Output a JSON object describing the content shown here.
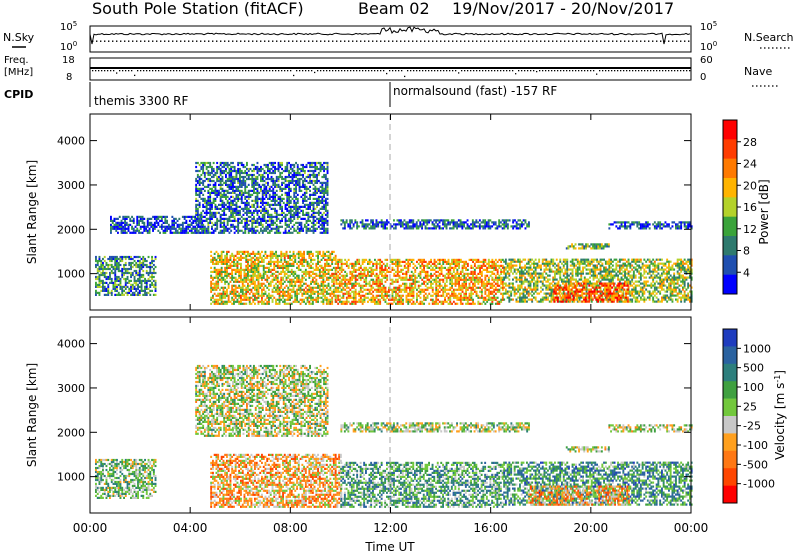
{
  "header": {
    "station": "South Pole Station (fitACF)",
    "beam": "Beam 02",
    "dates": "19/Nov/2017 - 20/Nov/2017"
  },
  "strip_nsky": {
    "left_label": "N.Sky",
    "right_label": "N.Search",
    "left_ticks": [
      "10^5",
      "10^0"
    ],
    "right_ticks": [
      "10^5",
      "10^0"
    ]
  },
  "strip_freq": {
    "left_label_1": "Freq.",
    "left_label_2": "[MHz]",
    "right_label": "Nave",
    "left_ticks": [
      "18",
      "8"
    ],
    "right_ticks": [
      "60",
      "0"
    ]
  },
  "cpid": {
    "label": "CPID",
    "segments": [
      {
        "start_hour": 0,
        "text": "themis 3300 RF"
      },
      {
        "start_hour": 12,
        "text": "normalsound (fast) -157 RF"
      }
    ]
  },
  "chart_data": [
    {
      "type": "heatmap",
      "title": "",
      "ylabel": "Slant Range [km]",
      "xlabel": "",
      "xlim_hours": [
        0,
        24
      ],
      "ylim_km": [
        180,
        4600
      ],
      "y_ticks": [
        "1000",
        "2000",
        "3000",
        "4000"
      ],
      "colorbar": {
        "label": "Power [dB]",
        "ticks": [
          "4",
          "8",
          "12",
          "16",
          "20",
          "24",
          "28"
        ],
        "range": [
          0,
          30
        ],
        "colors": [
          "#0000ff",
          "#1f4fb0",
          "#2e7a6e",
          "#3aa33a",
          "#b4d22a",
          "#ffb400",
          "#ff7a00",
          "#ff3c00",
          "#ff0000"
        ]
      },
      "echo_regions": [
        {
          "t0": 0.2,
          "t1": 2.6,
          "r0": 500,
          "r1": 1400,
          "value": 9
        },
        {
          "t0": 4.8,
          "t1": 9.8,
          "r0": 300,
          "r1": 1500,
          "value": 17
        },
        {
          "t0": 9.8,
          "t1": 16.5,
          "r0": 300,
          "r1": 1300,
          "value": 19
        },
        {
          "t0": 16.5,
          "t1": 24,
          "r0": 350,
          "r1": 1300,
          "value": 14
        },
        {
          "t0": 10,
          "t1": 17.5,
          "r0": 2000,
          "r1": 2200,
          "value": 6
        },
        {
          "t0": 19,
          "t1": 20.7,
          "r0": 1550,
          "r1": 1680,
          "value": 13
        },
        {
          "t0": 20.7,
          "t1": 24,
          "r0": 2000,
          "r1": 2150,
          "value": 5
        },
        {
          "t0": 4.2,
          "t1": 9.5,
          "r0": 1900,
          "r1": 3500,
          "value": 7
        },
        {
          "t0": 0.8,
          "t1": 4.5,
          "r0": 1900,
          "r1": 2300,
          "value": 4
        },
        {
          "t0": 18.5,
          "t1": 21.5,
          "r0": 350,
          "r1": 800,
          "value": 24
        }
      ]
    },
    {
      "type": "heatmap",
      "title": "",
      "ylabel": "Slant Range [km]",
      "xlabel": "Time UT",
      "xlim_hours": [
        0,
        24
      ],
      "ylim_km": [
        180,
        4600
      ],
      "x_ticks": [
        "00:00",
        "04:00",
        "08:00",
        "12:00",
        "16:00",
        "20:00",
        "00:00"
      ],
      "y_ticks": [
        "1000",
        "2000",
        "3000",
        "4000"
      ],
      "colorbar": {
        "label": "Velocity [m s^-1]",
        "ticks": [
          "1000",
          "500",
          "100",
          "25",
          "-25",
          "-100",
          "-500",
          "-1000"
        ],
        "range": [
          -1000,
          1000
        ],
        "colors": [
          "#1e3cbe",
          "#2a62a0",
          "#2d7f7d",
          "#3fa040",
          "#72c83c",
          "#c8c8c8",
          "#ffa01e",
          "#ff7814",
          "#ff4600",
          "#ff0000"
        ]
      },
      "echo_regions": [
        {
          "t0": 0.2,
          "t1": 2.6,
          "r0": 500,
          "r1": 1400,
          "value": 150
        },
        {
          "t0": 4.8,
          "t1": 10,
          "r0": 300,
          "r1": 1500,
          "value": -300
        },
        {
          "t0": 10,
          "t1": 16.5,
          "r0": 300,
          "r1": 1300,
          "value": 300
        },
        {
          "t0": 16.5,
          "t1": 24,
          "r0": 350,
          "r1": 1300,
          "value": 400
        },
        {
          "t0": 10,
          "t1": 17.5,
          "r0": 2000,
          "r1": 2200,
          "value": 60
        },
        {
          "t0": 19,
          "t1": 20.7,
          "r0": 1550,
          "r1": 1680,
          "value": 0
        },
        {
          "t0": 20.7,
          "t1": 24,
          "r0": 2000,
          "r1": 2150,
          "value": 0
        },
        {
          "t0": 4.2,
          "t1": 9.5,
          "r0": 1900,
          "r1": 3500,
          "value": 0
        },
        {
          "t0": 17.5,
          "t1": 21.5,
          "r0": 350,
          "r1": 800,
          "value": -300
        }
      ]
    }
  ]
}
